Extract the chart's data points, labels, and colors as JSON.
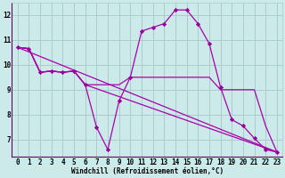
{
  "background_color": "#cceaea",
  "grid_color": "#aacccc",
  "line_color": "#aa00aa",
  "marker_color": "#990099",
  "marker_style": "D",
  "marker_size": 2.2,
  "line_width": 0.9,
  "xlabel": "Windchill (Refroidissement éolien,°C)",
  "xlabel_fontsize": 5.5,
  "tick_fontsize": 5.5,
  "xlim": [
    -0.5,
    23.5
  ],
  "ylim": [
    6.3,
    12.5
  ],
  "yticks": [
    7,
    8,
    9,
    10,
    11,
    12
  ],
  "xticks": [
    0,
    1,
    2,
    3,
    4,
    5,
    6,
    7,
    8,
    9,
    10,
    11,
    12,
    13,
    14,
    15,
    16,
    17,
    18,
    19,
    20,
    21,
    22,
    23
  ],
  "series": [
    {
      "x": [
        0,
        1,
        2,
        3,
        4,
        5,
        6,
        7,
        8,
        9,
        10,
        11,
        12,
        13,
        14,
        15,
        16,
        17,
        18,
        19,
        20,
        21,
        22,
        23
      ],
      "y": [
        10.7,
        10.65,
        9.7,
        9.75,
        9.7,
        9.75,
        9.2,
        7.5,
        6.6,
        8.55,
        9.5,
        11.35,
        11.5,
        11.65,
        12.2,
        12.2,
        11.65,
        10.85,
        9.1,
        7.8,
        7.55,
        7.05,
        6.6,
        6.5
      ],
      "has_markers": true
    },
    {
      "x": [
        0,
        1,
        2,
        3,
        4,
        5,
        6,
        7,
        8,
        9,
        10,
        11,
        12,
        13,
        14,
        15,
        16,
        17,
        18,
        19,
        20,
        21,
        22,
        23
      ],
      "y": [
        10.7,
        10.65,
        9.7,
        9.75,
        9.7,
        9.75,
        9.2,
        9.2,
        9.2,
        9.2,
        9.5,
        9.5,
        9.5,
        9.5,
        9.5,
        9.5,
        9.5,
        9.5,
        9.0,
        9.0,
        9.0,
        9.0,
        7.55,
        6.5
      ],
      "has_markers": false
    },
    {
      "x": [
        0,
        1,
        2,
        3,
        4,
        5,
        6,
        23
      ],
      "y": [
        10.7,
        10.65,
        9.7,
        9.75,
        9.7,
        9.75,
        9.2,
        6.5
      ],
      "has_markers": false
    },
    {
      "x": [
        0,
        23
      ],
      "y": [
        10.7,
        6.5
      ],
      "has_markers": false
    }
  ]
}
